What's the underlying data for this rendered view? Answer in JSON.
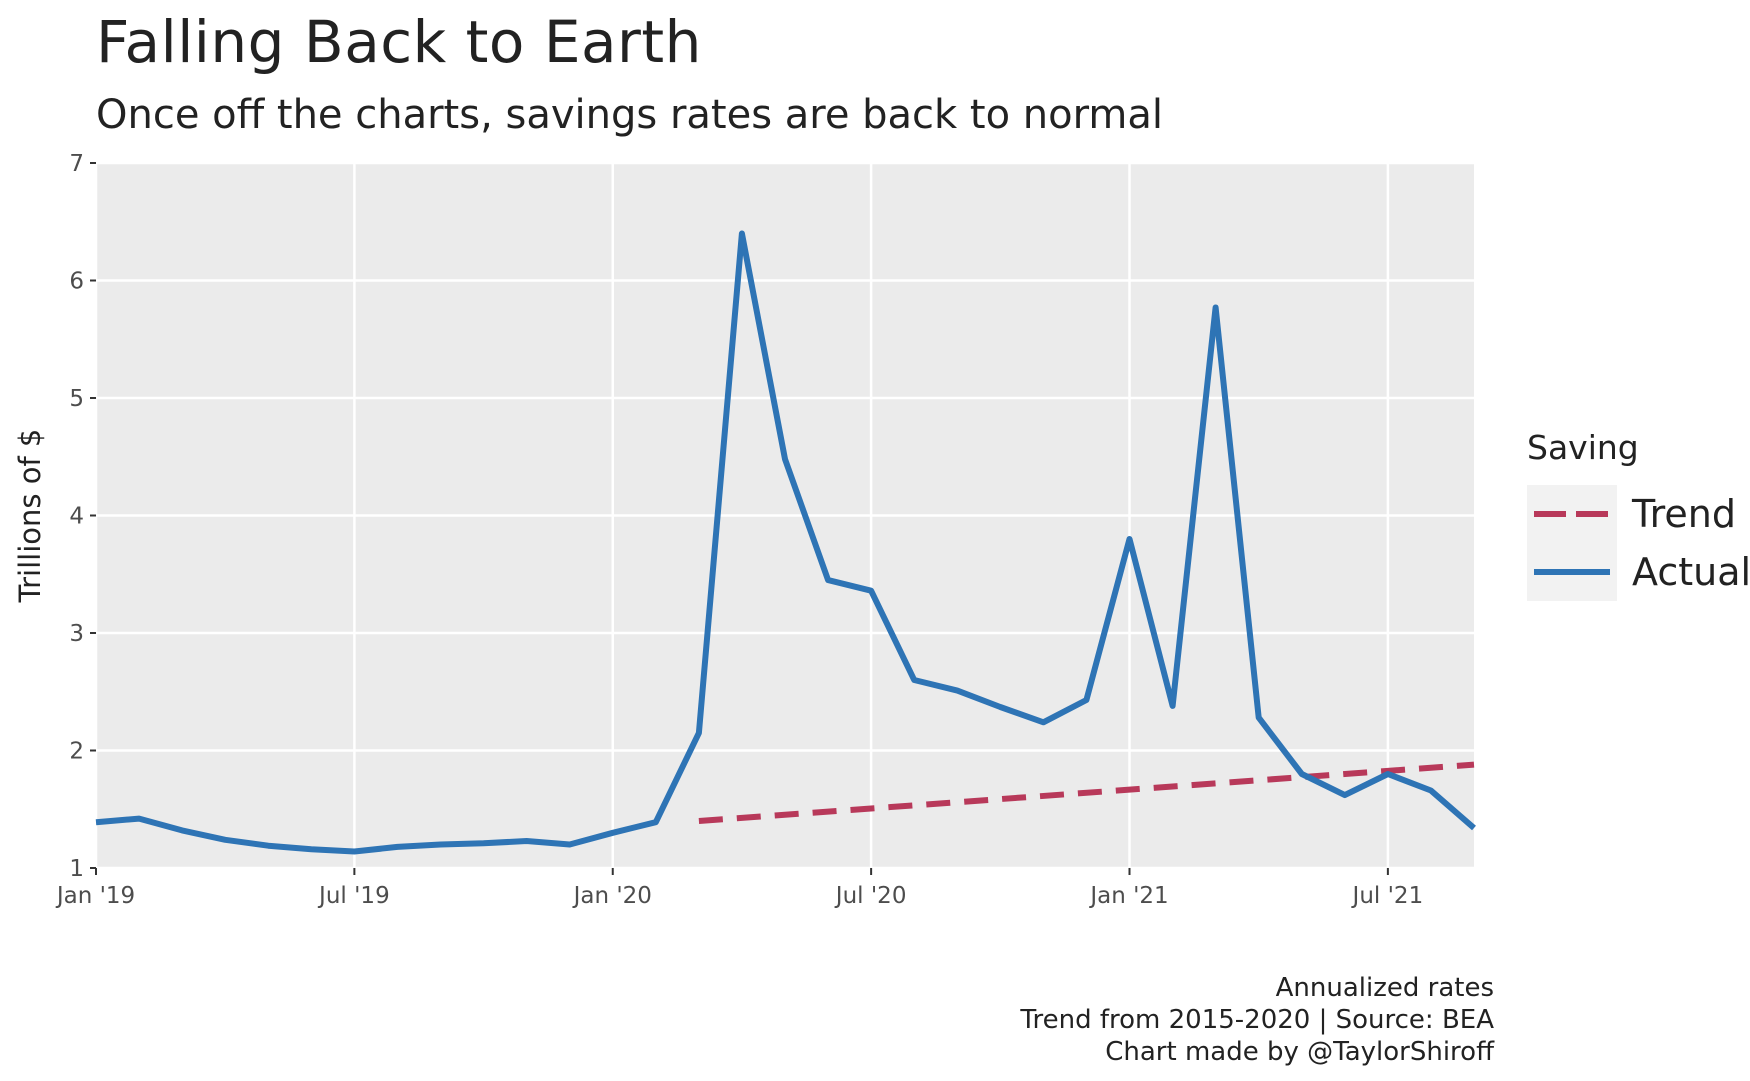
{
  "chart_data": {
    "type": "line",
    "title": "Falling Back to Earth",
    "subtitle": "Once off the charts, savings rates are back to normal",
    "ylabel": "Trillions of $",
    "xlabel": "",
    "ylim": [
      1,
      7
    ],
    "yticks": [
      1,
      2,
      3,
      4,
      5,
      6,
      7
    ],
    "xticks": [
      "Jan '19",
      "Jul '19",
      "Jan '20",
      "Jul '20",
      "Jan '21",
      "Jul '21"
    ],
    "grid": true,
    "legend": {
      "title": "Saving",
      "placement": "right"
    },
    "series": [
      {
        "name": "Trend",
        "color": "#b8395a",
        "dash": "dashed",
        "points": [
          [
            "2020-03",
            1.4
          ],
          [
            "2021-09",
            1.88
          ]
        ]
      },
      {
        "name": "Actual",
        "color": "#2e74b5",
        "dash": "solid",
        "points": [
          [
            "2019-01",
            1.39
          ],
          [
            "2019-02",
            1.42
          ],
          [
            "2019-03",
            1.32
          ],
          [
            "2019-04",
            1.24
          ],
          [
            "2019-05",
            1.19
          ],
          [
            "2019-06",
            1.16
          ],
          [
            "2019-07",
            1.14
          ],
          [
            "2019-08",
            1.18
          ],
          [
            "2019-09",
            1.2
          ],
          [
            "2019-10",
            1.21
          ],
          [
            "2019-11",
            1.23
          ],
          [
            "2019-12",
            1.2
          ],
          [
            "2020-01",
            1.3
          ],
          [
            "2020-02",
            1.39
          ],
          [
            "2020-03",
            2.15
          ],
          [
            "2020-04",
            6.4
          ],
          [
            "2020-05",
            4.48
          ],
          [
            "2020-06",
            3.45
          ],
          [
            "2020-07",
            3.36
          ],
          [
            "2020-08",
            2.6
          ],
          [
            "2020-09",
            2.51
          ],
          [
            "2020-10",
            2.37
          ],
          [
            "2020-11",
            2.24
          ],
          [
            "2020-12",
            2.43
          ],
          [
            "2021-01",
            3.8
          ],
          [
            "2021-02",
            2.38
          ],
          [
            "2021-03",
            5.77
          ],
          [
            "2021-04",
            2.28
          ],
          [
            "2021-05",
            1.8
          ],
          [
            "2021-06",
            1.62
          ],
          [
            "2021-07",
            1.8
          ],
          [
            "2021-08",
            1.66
          ],
          [
            "2021-09",
            1.34
          ]
        ]
      }
    ],
    "caption": [
      "Annualized rates",
      "Trend from 2015-2020 | Source: BEA",
      "Chart made by @TaylorShiroff"
    ]
  }
}
